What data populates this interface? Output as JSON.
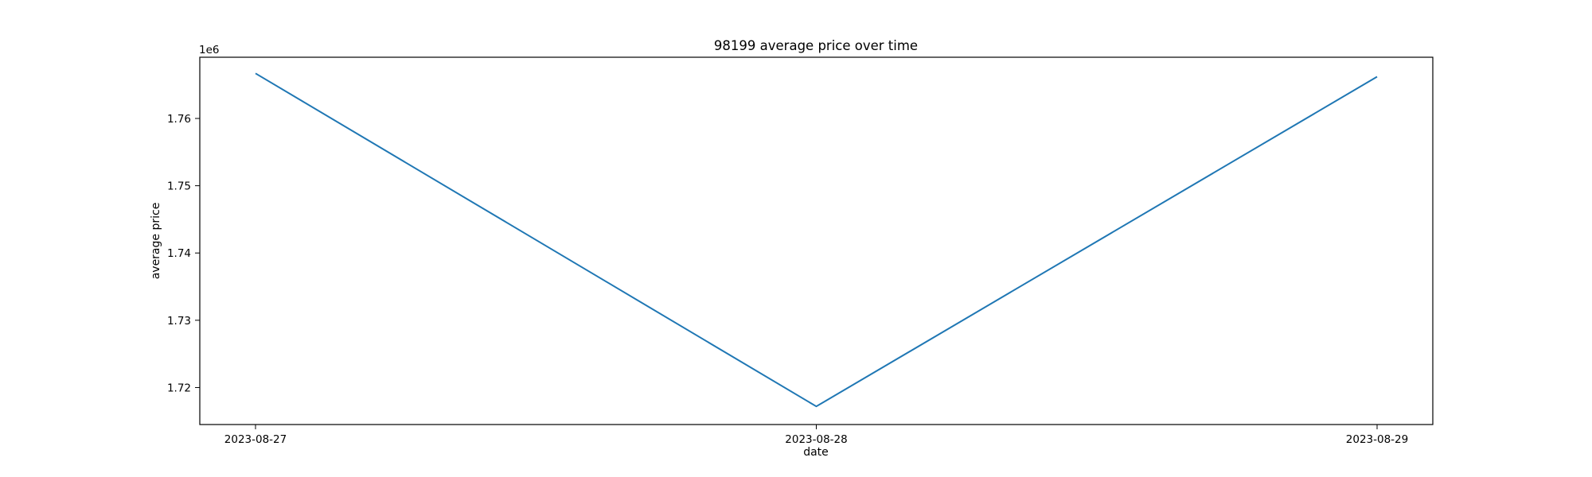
{
  "chart_data": {
    "type": "line",
    "title": "98199 average price over time",
    "xlabel": "date",
    "ylabel": "average price",
    "y_offset_label": "1e6",
    "x": [
      "2023-08-27",
      "2023-08-28",
      "2023-08-29"
    ],
    "x_tick_labels": [
      "2023-08-27",
      "2023-08-28",
      "2023-08-29"
    ],
    "series": [
      {
        "values": [
          1766700,
          1717200,
          1766200
        ],
        "color": "#1f77b4"
      }
    ],
    "y_ticks": [
      1720000,
      1730000,
      1740000,
      1750000,
      1760000
    ],
    "y_tick_labels": [
      "1.72",
      "1.73",
      "1.74",
      "1.75",
      "1.76"
    ],
    "ylim": [
      1714500,
      1769100
    ],
    "grid": false,
    "legend": "none"
  }
}
